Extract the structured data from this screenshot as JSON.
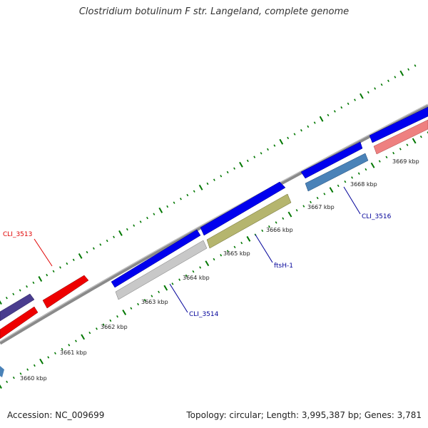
{
  "title": "Clostridium botulinum F str. Langeland, complete genome",
  "footer": {
    "accession": "Accession: NC_009699",
    "summary": "Topology: circular; Length: 3,995,387 bp; Genes: 3,781"
  },
  "kbp_ticks": [
    "3660 kbp",
    "3661 kbp",
    "3662 kbp",
    "3663 kbp",
    "3664 kbp",
    "3665 kbp",
    "3666 kbp",
    "3667 kbp",
    "3668 kbp",
    "3669 kbp"
  ],
  "gene_labels": {
    "cli_3513": "CLI_3513",
    "cli_3514": "CLI_3514",
    "ftsh_1": "ftsH-1",
    "cli_3516": "CLI_3516"
  },
  "colors": {
    "forward_strand": "#0000ee",
    "label_red": "#e00000",
    "label_blue": "#000099",
    "tick_green": "#007700",
    "backbone": "#888888",
    "gene_red": "#ee0000",
    "gene_purple": "#4a3d8f",
    "gene_grey": "#c8c8c8",
    "gene_olive": "#b5b56e",
    "gene_steel": "#4a82b8",
    "gene_pink": "#ee8080"
  }
}
